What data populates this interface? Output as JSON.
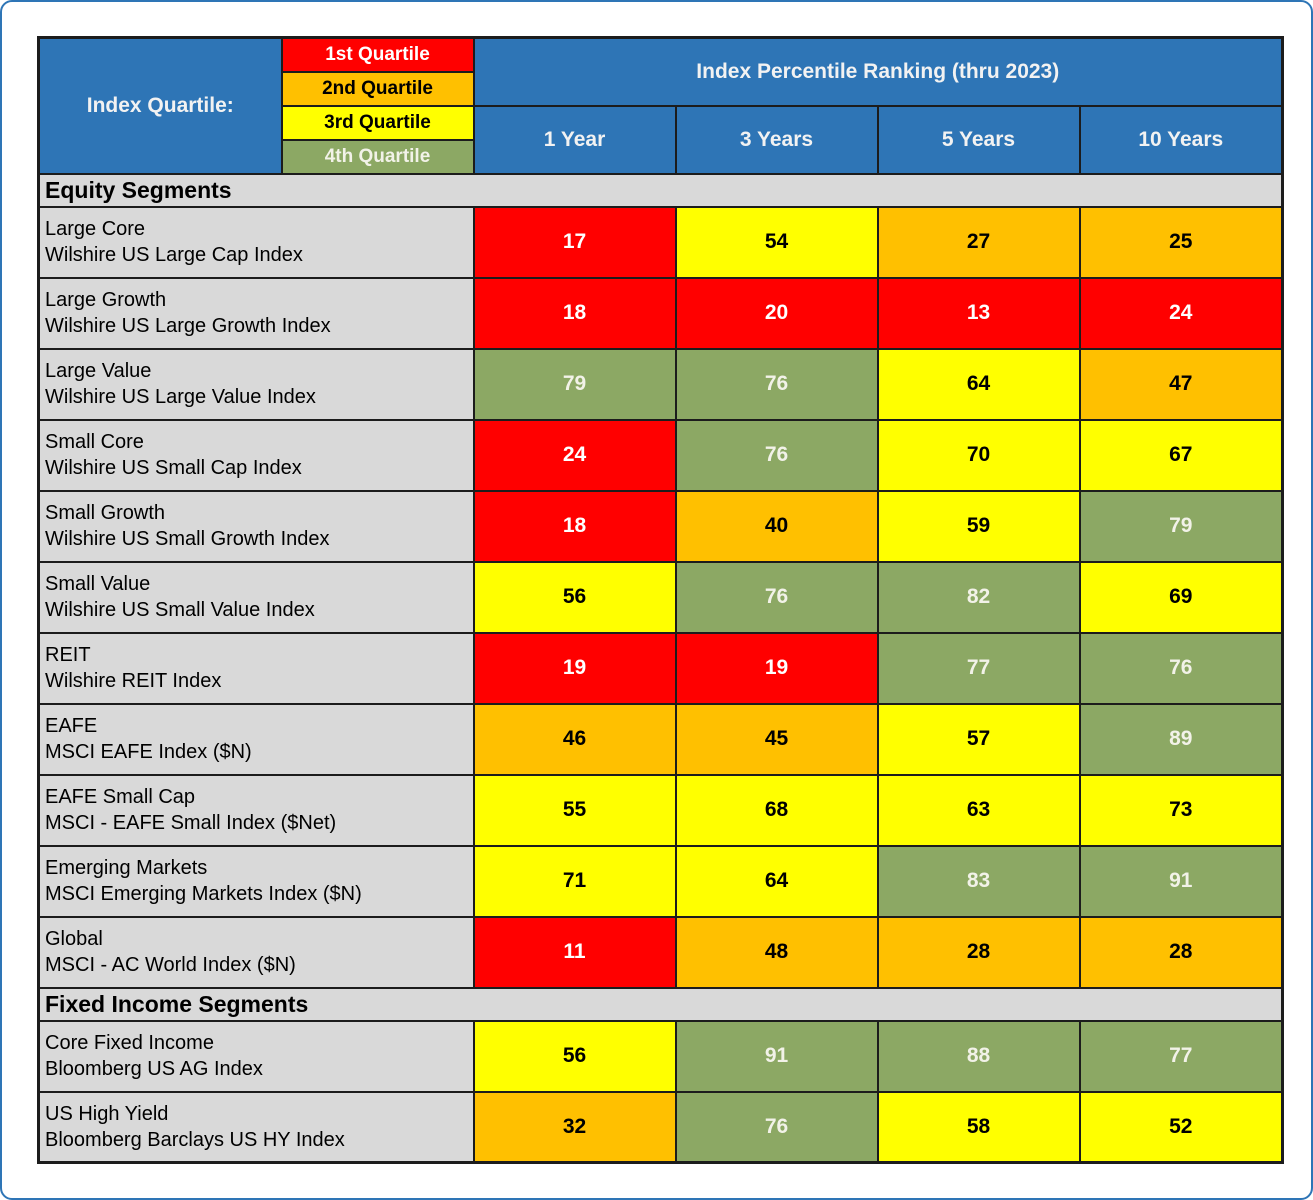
{
  "colors": {
    "quartile1": "#FF0000",
    "quartile1_text": "#FFFFFF",
    "quartile2": "#FFC000",
    "quartile2_text": "#000000",
    "quartile3": "#FFFF00",
    "quartile3_text": "#000000",
    "quartile4": "#8CA864",
    "quartile4_text": "#F2F2E8",
    "header_blue": "#2E75B6",
    "row_gray": "#D9D9D9",
    "border_black": "#1C1C1C",
    "outer_border_blue": "#2E75B6"
  },
  "legend": {
    "title": "Index Quartile:",
    "items": [
      {
        "label": "1st Quartile",
        "quartile": 1
      },
      {
        "label": "2nd Quartile",
        "quartile": 2
      },
      {
        "label": "3rd Quartile",
        "quartile": 3
      },
      {
        "label": "4th Quartile",
        "quartile": 4
      }
    ]
  },
  "chart_data": {
    "type": "heatmap",
    "title": "Index Percentile Ranking (thru 2023)",
    "columns": [
      "1 Year",
      "3 Years",
      "5 Years",
      "10 Years"
    ],
    "legend": [
      "1st Quartile",
      "2nd Quartile",
      "3rd Quartile",
      "4th Quartile"
    ],
    "sections": [
      {
        "title": "Equity Segments",
        "rows": [
          {
            "name": "Large Core",
            "index": "Wilshire US Large Cap Index",
            "cells": [
              {
                "value": 17,
                "quartile": 1
              },
              {
                "value": 54,
                "quartile": 3
              },
              {
                "value": 27,
                "quartile": 2
              },
              {
                "value": 25,
                "quartile": 2
              }
            ]
          },
          {
            "name": "Large Growth",
            "index": "Wilshire US Large Growth Index",
            "cells": [
              {
                "value": 18,
                "quartile": 1
              },
              {
                "value": 20,
                "quartile": 1
              },
              {
                "value": 13,
                "quartile": 1
              },
              {
                "value": 24,
                "quartile": 1
              }
            ]
          },
          {
            "name": "Large Value",
            "index": "Wilshire US Large Value Index",
            "cells": [
              {
                "value": 79,
                "quartile": 4
              },
              {
                "value": 76,
                "quartile": 4
              },
              {
                "value": 64,
                "quartile": 3
              },
              {
                "value": 47,
                "quartile": 2
              }
            ]
          },
          {
            "name": "Small Core",
            "index": "Wilshire US Small Cap Index",
            "cells": [
              {
                "value": 24,
                "quartile": 1
              },
              {
                "value": 76,
                "quartile": 4
              },
              {
                "value": 70,
                "quartile": 3
              },
              {
                "value": 67,
                "quartile": 3
              }
            ]
          },
          {
            "name": "Small Growth",
            "index": "Wilshire US Small Growth Index",
            "cells": [
              {
                "value": 18,
                "quartile": 1
              },
              {
                "value": 40,
                "quartile": 2
              },
              {
                "value": 59,
                "quartile": 3
              },
              {
                "value": 79,
                "quartile": 4
              }
            ]
          },
          {
            "name": "Small Value",
            "index": "Wilshire US Small Value Index",
            "cells": [
              {
                "value": 56,
                "quartile": 3
              },
              {
                "value": 76,
                "quartile": 4
              },
              {
                "value": 82,
                "quartile": 4
              },
              {
                "value": 69,
                "quartile": 3
              }
            ]
          },
          {
            "name": "REIT",
            "index": "Wilshire REIT Index",
            "cells": [
              {
                "value": 19,
                "quartile": 1
              },
              {
                "value": 19,
                "quartile": 1
              },
              {
                "value": 77,
                "quartile": 4
              },
              {
                "value": 76,
                "quartile": 4
              }
            ]
          },
          {
            "name": "EAFE",
            "index": "MSCI EAFE Index ($N)",
            "cells": [
              {
                "value": 46,
                "quartile": 2
              },
              {
                "value": 45,
                "quartile": 2
              },
              {
                "value": 57,
                "quartile": 3
              },
              {
                "value": 89,
                "quartile": 4
              }
            ]
          },
          {
            "name": "EAFE Small Cap",
            "index": "MSCI - EAFE Small Index ($Net)",
            "cells": [
              {
                "value": 55,
                "quartile": 3
              },
              {
                "value": 68,
                "quartile": 3
              },
              {
                "value": 63,
                "quartile": 3
              },
              {
                "value": 73,
                "quartile": 3
              }
            ]
          },
          {
            "name": "Emerging Markets",
            "index": "MSCI Emerging Markets Index ($N)",
            "cells": [
              {
                "value": 71,
                "quartile": 3
              },
              {
                "value": 64,
                "quartile": 3
              },
              {
                "value": 83,
                "quartile": 4
              },
              {
                "value": 91,
                "quartile": 4
              }
            ]
          },
          {
            "name": "Global",
            "index": "MSCI - AC World Index ($N)",
            "cells": [
              {
                "value": 11,
                "quartile": 1
              },
              {
                "value": 48,
                "quartile": 2
              },
              {
                "value": 28,
                "quartile": 2
              },
              {
                "value": 28,
                "quartile": 2
              }
            ]
          }
        ]
      },
      {
        "title": "Fixed Income Segments",
        "rows": [
          {
            "name": "Core Fixed Income",
            "index": "Bloomberg  US AG Index",
            "cells": [
              {
                "value": 56,
                "quartile": 3
              },
              {
                "value": 91,
                "quartile": 4
              },
              {
                "value": 88,
                "quartile": 4
              },
              {
                "value": 77,
                "quartile": 4
              }
            ]
          },
          {
            "name": "US High Yield",
            "index": "Bloomberg Barclays US HY Index",
            "cells": [
              {
                "value": 32,
                "quartile": 2
              },
              {
                "value": 76,
                "quartile": 4
              },
              {
                "value": 58,
                "quartile": 3
              },
              {
                "value": 52,
                "quartile": 3
              }
            ]
          }
        ]
      }
    ]
  }
}
